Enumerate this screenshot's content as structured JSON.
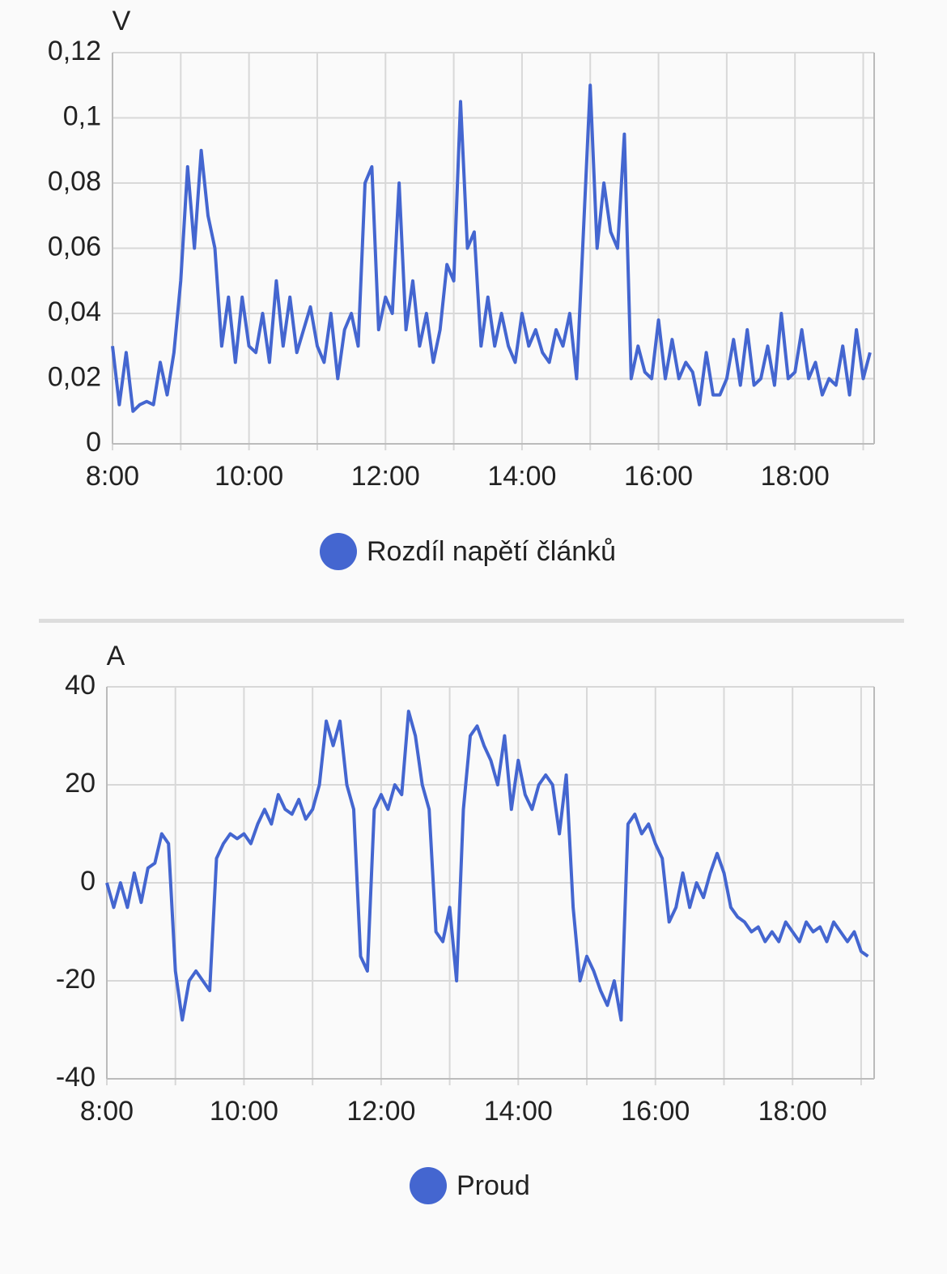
{
  "chart_data": [
    {
      "type": "line",
      "y_axis_label": "V",
      "grid": true,
      "legend": "bottom",
      "x": [
        8.0,
        8.1,
        8.2,
        8.3,
        8.4,
        8.5,
        8.6,
        8.7,
        8.8,
        8.9,
        9.0,
        9.1,
        9.2,
        9.3,
        9.4,
        9.5,
        9.6,
        9.7,
        9.8,
        9.9,
        10.0,
        10.1,
        10.2,
        10.3,
        10.4,
        10.5,
        10.6,
        10.7,
        10.8,
        10.9,
        11.0,
        11.1,
        11.2,
        11.3,
        11.4,
        11.5,
        11.6,
        11.7,
        11.8,
        11.9,
        12.0,
        12.1,
        12.2,
        12.3,
        12.4,
        12.5,
        12.6,
        12.7,
        12.8,
        12.9,
        13.0,
        13.1,
        13.2,
        13.3,
        13.4,
        13.5,
        13.6,
        13.7,
        13.8,
        13.9,
        14.0,
        14.1,
        14.2,
        14.3,
        14.4,
        14.5,
        14.6,
        14.7,
        14.8,
        14.9,
        15.0,
        15.1,
        15.2,
        15.3,
        15.4,
        15.5,
        15.6,
        15.7,
        15.8,
        15.9,
        16.0,
        16.1,
        16.2,
        16.3,
        16.4,
        16.5,
        16.6,
        16.7,
        16.8,
        16.9,
        17.0,
        17.1,
        17.2,
        17.3,
        17.4,
        17.5,
        17.6,
        17.7,
        17.8,
        17.9,
        18.0,
        18.1,
        18.2,
        18.3,
        18.4,
        18.5,
        18.6,
        18.7,
        18.8,
        18.9,
        19.0,
        19.1
      ],
      "xlim": [
        8,
        19.16
      ],
      "xticks": [
        {
          "value": 8,
          "label": "8:00"
        },
        {
          "value": 10,
          "label": "10:00"
        },
        {
          "value": 12,
          "label": "12:00"
        },
        {
          "value": 14,
          "label": "14:00"
        },
        {
          "value": 16,
          "label": "16:00"
        },
        {
          "value": 18,
          "label": "18:00"
        }
      ],
      "x_minor_ticks": [
        9,
        11,
        13,
        15,
        17,
        19
      ],
      "ylim": [
        0,
        0.12
      ],
      "yticks": [
        0,
        {
          "value": 0.02,
          "label": "0,02"
        },
        {
          "value": 0.04,
          "label": "0,04"
        },
        {
          "value": 0.06,
          "label": "0,06"
        },
        {
          "value": 0.08,
          "label": "0,08"
        },
        {
          "value": 0.1,
          "label": "0,1"
        },
        {
          "value": 0.12,
          "label": "0,12"
        }
      ],
      "series": [
        {
          "name": "Rozdíl napětí článků",
          "color": "#4466d0",
          "values": [
            0.03,
            0.012,
            0.028,
            0.01,
            0.012,
            0.013,
            0.012,
            0.025,
            0.015,
            0.028,
            0.05,
            0.085,
            0.06,
            0.09,
            0.07,
            0.06,
            0.03,
            0.045,
            0.025,
            0.045,
            0.03,
            0.028,
            0.04,
            0.025,
            0.05,
            0.03,
            0.045,
            0.028,
            0.035,
            0.042,
            0.03,
            0.025,
            0.04,
            0.02,
            0.035,
            0.04,
            0.03,
            0.08,
            0.085,
            0.035,
            0.045,
            0.04,
            0.08,
            0.035,
            0.05,
            0.03,
            0.04,
            0.025,
            0.035,
            0.055,
            0.05,
            0.105,
            0.06,
            0.065,
            0.03,
            0.045,
            0.03,
            0.04,
            0.03,
            0.025,
            0.04,
            0.03,
            0.035,
            0.028,
            0.025,
            0.035,
            0.03,
            0.04,
            0.02,
            0.065,
            0.11,
            0.06,
            0.08,
            0.065,
            0.06,
            0.095,
            0.02,
            0.03,
            0.022,
            0.02,
            0.038,
            0.02,
            0.032,
            0.02,
            0.025,
            0.022,
            0.012,
            0.028,
            0.015,
            0.015,
            0.02,
            0.032,
            0.018,
            0.035,
            0.018,
            0.02,
            0.03,
            0.018,
            0.04,
            0.02,
            0.022,
            0.035,
            0.02,
            0.025,
            0.015,
            0.02,
            0.018,
            0.03,
            0.015,
            0.035,
            0.02,
            0.028
          ]
        }
      ]
    },
    {
      "type": "line",
      "y_axis_label": "A",
      "grid": true,
      "legend": "bottom",
      "x": [
        8.0,
        8.1,
        8.2,
        8.3,
        8.4,
        8.5,
        8.6,
        8.7,
        8.8,
        8.9,
        9.0,
        9.1,
        9.2,
        9.3,
        9.4,
        9.5,
        9.6,
        9.7,
        9.8,
        9.9,
        10.0,
        10.1,
        10.2,
        10.3,
        10.4,
        10.5,
        10.6,
        10.7,
        10.8,
        10.9,
        11.0,
        11.1,
        11.2,
        11.3,
        11.4,
        11.5,
        11.6,
        11.7,
        11.8,
        11.9,
        12.0,
        12.1,
        12.2,
        12.3,
        12.4,
        12.5,
        12.6,
        12.7,
        12.8,
        12.9,
        13.0,
        13.1,
        13.2,
        13.3,
        13.4,
        13.5,
        13.6,
        13.7,
        13.8,
        13.9,
        14.0,
        14.1,
        14.2,
        14.3,
        14.4,
        14.5,
        14.6,
        14.7,
        14.8,
        14.9,
        15.0,
        15.1,
        15.2,
        15.3,
        15.4,
        15.5,
        15.6,
        15.7,
        15.8,
        15.9,
        16.0,
        16.1,
        16.2,
        16.3,
        16.4,
        16.5,
        16.6,
        16.7,
        16.8,
        16.9,
        17.0,
        17.1,
        17.2,
        17.3,
        17.4,
        17.5,
        17.6,
        17.7,
        17.8,
        17.9,
        18.0,
        18.1,
        18.2,
        18.3,
        18.4,
        18.5,
        18.6,
        18.7,
        18.8,
        18.9,
        19.0,
        19.1
      ],
      "xlim": [
        8,
        19.19
      ],
      "xticks": [
        {
          "value": 8,
          "label": "8:00"
        },
        {
          "value": 10,
          "label": "10:00"
        },
        {
          "value": 12,
          "label": "12:00"
        },
        {
          "value": 14,
          "label": "14:00"
        },
        {
          "value": 16,
          "label": "16:00"
        },
        {
          "value": 18,
          "label": "18:00"
        }
      ],
      "x_minor_ticks": [
        9,
        11,
        13,
        15,
        17,
        19
      ],
      "ylim": [
        -40,
        40
      ],
      "yticks": [
        -40,
        -20,
        0,
        20,
        40
      ],
      "series": [
        {
          "name": "Proud",
          "color": "#4466d0",
          "values": [
            0,
            -5,
            0,
            -5,
            2,
            -4,
            3,
            4,
            10,
            8,
            -18,
            -28,
            -20,
            -18,
            -20,
            -22,
            5,
            8,
            10,
            9,
            10,
            8,
            12,
            15,
            12,
            18,
            15,
            14,
            17,
            13,
            15,
            20,
            33,
            28,
            33,
            20,
            15,
            -15,
            -18,
            15,
            18,
            15,
            20,
            18,
            35,
            30,
            20,
            15,
            -10,
            -12,
            -5,
            -20,
            15,
            30,
            32,
            28,
            25,
            20,
            30,
            15,
            25,
            18,
            15,
            20,
            22,
            20,
            10,
            22,
            -5,
            -20,
            -15,
            -18,
            -22,
            -25,
            -20,
            -28,
            12,
            14,
            10,
            12,
            8,
            5,
            -8,
            -5,
            2,
            -5,
            0,
            -3,
            2,
            6,
            2,
            -5,
            -7,
            -8,
            -10,
            -9,
            -12,
            -10,
            -12,
            -8,
            -10,
            -12,
            -8,
            -10,
            -9,
            -12,
            -8,
            -10,
            -12,
            -10,
            -14,
            -15
          ]
        }
      ]
    }
  ]
}
